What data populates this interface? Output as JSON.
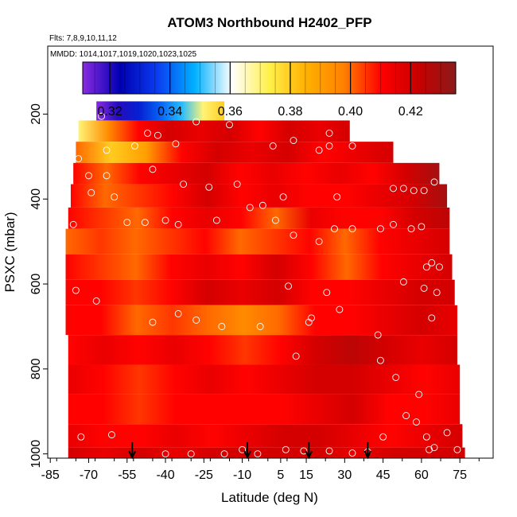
{
  "chart_data": {
    "type": "heatmap",
    "title": "ATOM3 Northbound H2402_PFP",
    "flights_label": "Flts: 7,8,9,10,11,12",
    "dates_label": "MMDD: 1014,1017,1019,1020,1023,1025",
    "xlabel": "Latitude (deg N)",
    "ylabel": "PSXC (mbar)",
    "xlim": [
      -86,
      88
    ],
    "ylim": [
      1010,
      40
    ],
    "x_ticks": [
      -85,
      -70,
      -55,
      -40,
      -25,
      -10,
      5,
      15,
      30,
      45,
      60,
      75
    ],
    "y_ticks": [
      200,
      400,
      600,
      800,
      1000
    ],
    "colorbar": {
      "range": [
        0.311,
        0.435
      ],
      "ticks": [
        0.32,
        0.34,
        0.36,
        0.38,
        0.4,
        0.42
      ],
      "tick_labels": [
        "0.32",
        "0.34",
        "0.36",
        "0.38",
        "0.40",
        "0.42"
      ],
      "colors": [
        "#8a2be2",
        "#0000b0",
        "#0a3cf0",
        "#00b0ff",
        "#ffffff",
        "#fff04a",
        "#ffb000",
        "#ff8000",
        "#ff0000",
        "#c80000",
        "#8b1a1a"
      ]
    },
    "arrows_latitude": [
      -53,
      -8,
      16,
      39
    ],
    "bands": [
      {
        "p_top": 170,
        "p_bot": 215,
        "lat_min": -67,
        "lat_max": -17,
        "values": [
          0.31,
          0.32,
          0.33,
          0.34,
          0.35,
          0.37,
          0.38
        ]
      },
      {
        "p_top": 215,
        "p_bot": 265,
        "lat_min": -74,
        "lat_max": 32,
        "values": [
          0.37,
          0.395,
          0.41,
          0.42,
          0.415,
          0.42,
          0.41,
          0.42,
          0.415,
          0.42
        ]
      },
      {
        "p_top": 265,
        "p_bot": 315,
        "lat_min": -75,
        "lat_max": 49,
        "values": [
          0.4,
          0.38,
          0.39,
          0.41,
          0.42,
          0.415,
          0.42,
          0.41,
          0.415,
          0.42
        ]
      },
      {
        "p_top": 315,
        "p_bot": 365,
        "lat_min": -76,
        "lat_max": 67,
        "values": [
          0.41,
          0.4,
          0.41,
          0.415,
          0.42,
          0.41,
          0.415,
          0.41,
          0.415,
          0.41,
          0.42,
          0.43
        ]
      },
      {
        "p_top": 365,
        "p_bot": 420,
        "lat_min": -77,
        "lat_max": 70,
        "values": [
          0.41,
          0.4,
          0.405,
          0.41,
          0.42,
          0.41,
          0.415,
          0.41,
          0.41,
          0.415,
          0.42,
          0.43
        ]
      },
      {
        "p_top": 420,
        "p_bot": 470,
        "lat_min": -78,
        "lat_max": 71,
        "values": [
          0.41,
          0.405,
          0.4,
          0.41,
          0.415,
          0.41,
          0.4,
          0.415,
          0.41,
          0.41,
          0.42,
          0.425
        ]
      },
      {
        "p_top": 470,
        "p_bot": 530,
        "lat_min": -79,
        "lat_max": 71,
        "values": [
          0.4,
          0.405,
          0.4,
          0.405,
          0.41,
          0.4,
          0.405,
          0.41,
          0.4,
          0.41,
          0.415,
          0.42
        ]
      },
      {
        "p_top": 530,
        "p_bot": 590,
        "lat_min": -79,
        "lat_max": 72,
        "values": [
          0.41,
          0.405,
          0.4,
          0.41,
          0.415,
          0.41,
          0.42,
          0.41,
          0.4,
          0.41,
          0.415,
          0.42
        ]
      },
      {
        "p_top": 590,
        "p_bot": 650,
        "lat_min": -79,
        "lat_max": 73,
        "values": [
          0.41,
          0.41,
          0.405,
          0.41,
          0.42,
          0.415,
          0.42,
          0.41,
          0.41,
          0.415,
          0.42,
          0.42
        ]
      },
      {
        "p_top": 650,
        "p_bot": 720,
        "lat_min": -79,
        "lat_max": 74,
        "values": [
          0.41,
          0.41,
          0.4,
          0.405,
          0.4,
          0.395,
          0.4,
          0.41,
          0.41,
          0.415,
          0.42,
          0.415
        ]
      },
      {
        "p_top": 720,
        "p_bot": 790,
        "lat_min": -78,
        "lat_max": 74,
        "values": [
          0.41,
          0.415,
          0.41,
          0.415,
          0.41,
          0.405,
          0.41,
          0.42,
          0.425,
          0.42,
          0.415,
          0.42
        ]
      },
      {
        "p_top": 790,
        "p_bot": 860,
        "lat_min": -78,
        "lat_max": 75,
        "values": [
          0.415,
          0.41,
          0.405,
          0.41,
          0.415,
          0.41,
          0.415,
          0.42,
          0.42,
          0.415,
          0.41,
          0.415
        ]
      },
      {
        "p_top": 860,
        "p_bot": 930,
        "lat_min": -78,
        "lat_max": 75,
        "values": [
          0.41,
          0.41,
          0.405,
          0.41,
          0.41,
          0.41,
          0.41,
          0.415,
          0.42,
          0.41,
          0.41,
          0.415
        ]
      },
      {
        "p_top": 930,
        "p_bot": 985,
        "lat_min": -78,
        "lat_max": 76,
        "values": [
          0.415,
          0.41,
          0.41,
          0.415,
          0.41,
          0.415,
          0.42,
          0.42,
          0.415,
          0.41,
          0.415,
          0.42
        ]
      },
      {
        "p_top": 985,
        "p_bot": 1010,
        "lat_min": -78,
        "lat_max": 77,
        "values": [
          0.42,
          0.415,
          0.42,
          0.415,
          0.42,
          0.42,
          0.42,
          0.42,
          0.415,
          0.42,
          0.42,
          0.42
        ]
      }
    ],
    "samples": [
      [
        -65,
        205
      ],
      [
        -47,
        245
      ],
      [
        -43,
        250
      ],
      [
        -28,
        218
      ],
      [
        -11,
        200
      ],
      [
        -15,
        225
      ],
      [
        -63,
        285
      ],
      [
        -52,
        275
      ],
      [
        -36,
        270
      ],
      [
        2,
        275
      ],
      [
        10,
        262
      ],
      [
        24,
        245
      ],
      [
        33,
        275
      ],
      [
        24,
        275
      ],
      [
        20,
        285
      ],
      [
        -74,
        305
      ],
      [
        -70,
        345
      ],
      [
        -63,
        345
      ],
      [
        -45,
        330
      ],
      [
        -33,
        365
      ],
      [
        -23,
        372
      ],
      [
        -12,
        365
      ],
      [
        -2,
        415
      ],
      [
        6,
        395
      ],
      [
        27,
        395
      ],
      [
        49,
        375
      ],
      [
        53,
        375
      ],
      [
        57,
        380
      ],
      [
        61,
        380
      ],
      [
        65,
        360
      ],
      [
        -76,
        460
      ],
      [
        -69,
        385
      ],
      [
        -60,
        395
      ],
      [
        -55,
        455
      ],
      [
        -48,
        455
      ],
      [
        -40,
        450
      ],
      [
        -35,
        460
      ],
      [
        -20,
        450
      ],
      [
        -7,
        420
      ],
      [
        3,
        450
      ],
      [
        10,
        485
      ],
      [
        20,
        500
      ],
      [
        26,
        470
      ],
      [
        33,
        470
      ],
      [
        44,
        470
      ],
      [
        49,
        460
      ],
      [
        56,
        470
      ],
      [
        60,
        465
      ],
      [
        62,
        560
      ],
      [
        64,
        550
      ],
      [
        67,
        560
      ],
      [
        -75,
        615
      ],
      [
        -67,
        640
      ],
      [
        -45,
        690
      ],
      [
        -35,
        670
      ],
      [
        -28,
        685
      ],
      [
        -18,
        700
      ],
      [
        -3,
        700
      ],
      [
        8,
        605
      ],
      [
        16,
        690
      ],
      [
        23,
        620
      ],
      [
        43,
        720
      ],
      [
        53,
        595
      ],
      [
        61,
        610
      ],
      [
        64,
        680
      ],
      [
        66,
        620
      ],
      [
        -73,
        960
      ],
      [
        -61,
        955
      ],
      [
        -40,
        1000
      ],
      [
        -30,
        1000
      ],
      [
        -17,
        1000
      ],
      [
        -4,
        1000
      ],
      [
        11,
        770
      ],
      [
        17,
        680
      ],
      [
        28,
        660
      ],
      [
        44,
        780
      ],
      [
        50,
        820
      ],
      [
        54,
        910
      ],
      [
        58,
        925
      ],
      [
        62,
        960
      ],
      [
        65,
        985
      ],
      [
        -10,
        990
      ],
      [
        7,
        990
      ],
      [
        14,
        993
      ],
      [
        24,
        993
      ],
      [
        33,
        998
      ],
      [
        39,
        995
      ],
      [
        45,
        960
      ],
      [
        59,
        860
      ],
      [
        63,
        990
      ],
      [
        74,
        990
      ],
      [
        70,
        950
      ]
    ]
  }
}
